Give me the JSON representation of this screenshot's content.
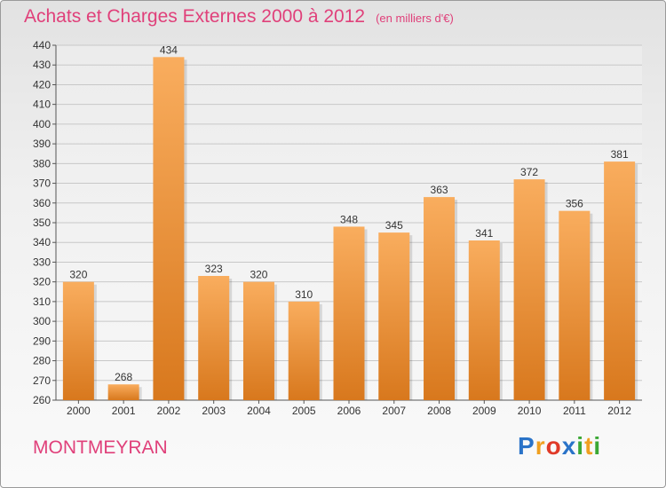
{
  "header": {
    "title": "Achats et Charges Externes 2000 à 2012",
    "unit": "(en milliers d'€)"
  },
  "place_label": "MONTMEYRAN",
  "logo_letters": [
    {
      "ch": "P",
      "color": "#2a73c8"
    },
    {
      "ch": "r",
      "color": "#f0a020"
    },
    {
      "ch": "o",
      "color": "#e03a28"
    },
    {
      "ch": "x",
      "color": "#2a73c8"
    },
    {
      "ch": "i",
      "color": "#3aa835"
    },
    {
      "ch": "t",
      "color": "#f0a020"
    },
    {
      "ch": "i",
      "color": "#3aa835"
    }
  ],
  "colors": {
    "bar_light": "#f9ad5e",
    "bar_dark": "#d8781d",
    "title": "#e0407a"
  },
  "chart_data": {
    "type": "bar",
    "categories": [
      "2000",
      "2001",
      "2002",
      "2003",
      "2004",
      "2005",
      "2006",
      "2007",
      "2008",
      "2009",
      "2010",
      "2011",
      "2012"
    ],
    "values": [
      320,
      268,
      434,
      323,
      320,
      310,
      348,
      345,
      363,
      341,
      372,
      356,
      381
    ],
    "ylim": [
      260,
      440
    ],
    "yticks": [
      260,
      270,
      280,
      290,
      300,
      310,
      320,
      330,
      340,
      350,
      360,
      370,
      380,
      390,
      400,
      410,
      420,
      430,
      440
    ],
    "grid": true
  }
}
